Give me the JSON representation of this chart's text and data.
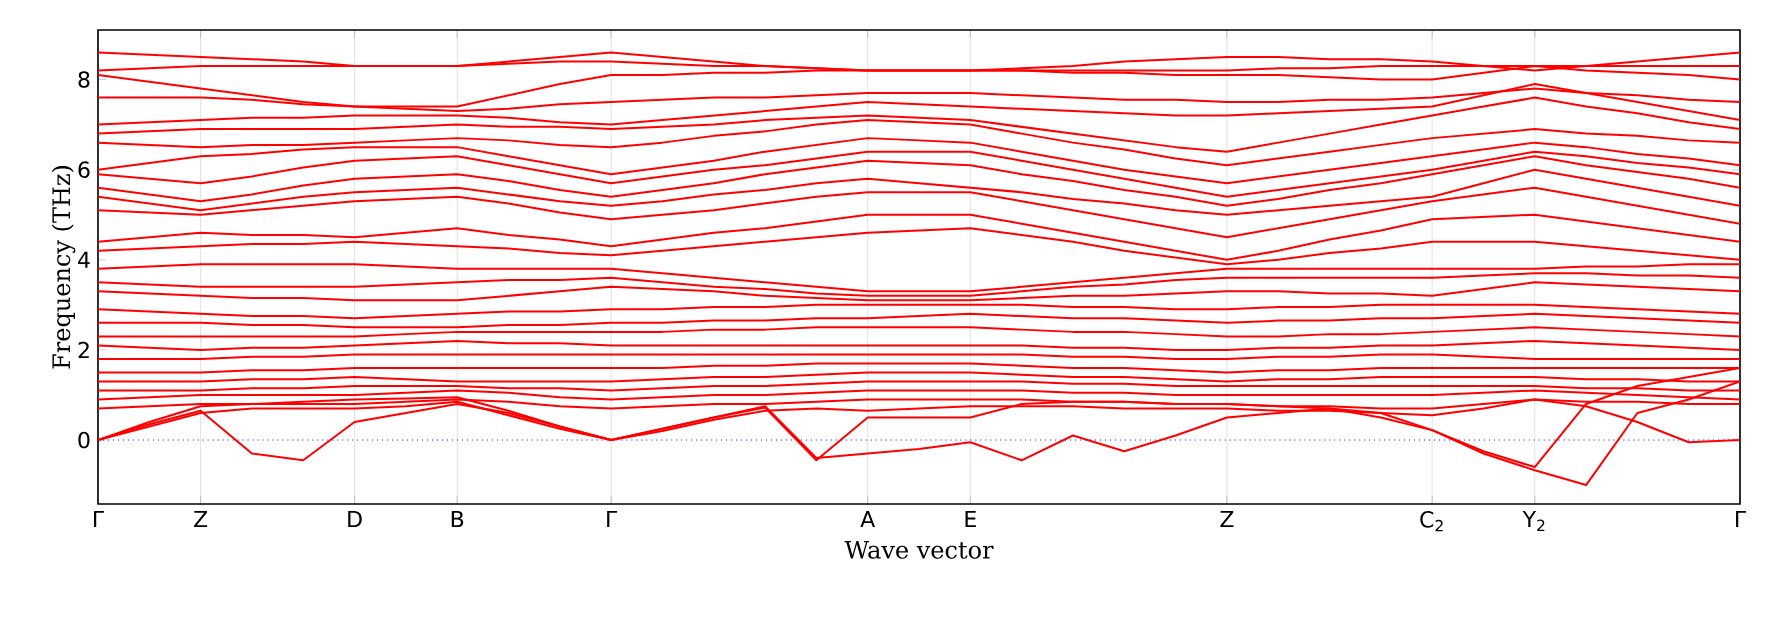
{
  "chart_data": {
    "type": "line",
    "xlabel": "Wave vector",
    "ylabel": "Frequency (THz)",
    "categories": [
      "Γ",
      null,
      "Z",
      null,
      null,
      "D",
      null,
      "B",
      null,
      null,
      "Γ",
      null,
      null,
      null,
      null,
      "A",
      null,
      "E",
      null,
      null,
      null,
      null,
      "Z",
      null,
      null,
      null,
      "C$_{2}$",
      null,
      "Y$_{2}$",
      null,
      null,
      null,
      "Γ"
    ],
    "ylim": [
      -1.42,
      9.1
    ],
    "yticks": [
      0,
      2,
      4,
      6,
      8
    ],
    "grid": "x",
    "ref_lines": [
      {
        "axis": "y",
        "value": 0,
        "color": "#0000ff",
        "line_style": "dotted"
      }
    ],
    "series": [
      {
        "color": "#ff0000",
        "values": [
          8.6,
          8.55,
          8.5,
          8.45,
          8.4,
          8.3,
          8.3,
          8.3,
          8.4,
          8.5,
          8.6,
          8.5,
          8.4,
          8.3,
          8.25,
          8.2,
          8.2,
          8.2,
          8.25,
          8.3,
          8.4,
          8.45,
          8.5,
          8.5,
          8.45,
          8.45,
          8.4,
          8.3,
          8.2,
          8.3,
          8.4,
          8.5,
          8.6
        ]
      },
      {
        "color": "#ff0000",
        "values": [
          8.2,
          8.25,
          8.3,
          8.3,
          8.3,
          8.3,
          8.3,
          8.3,
          8.35,
          8.4,
          8.4,
          8.35,
          8.3,
          8.3,
          8.25,
          8.2,
          8.2,
          8.2,
          8.2,
          8.2,
          8.2,
          8.2,
          8.2,
          8.25,
          8.25,
          8.3,
          8.3,
          8.3,
          8.3,
          8.3,
          8.3,
          8.3,
          8.3
        ]
      },
      {
        "color": "#ff0000",
        "values": [
          8.1,
          7.95,
          7.8,
          7.65,
          7.5,
          7.4,
          7.4,
          7.4,
          7.65,
          7.9,
          8.1,
          8.1,
          8.15,
          8.15,
          8.2,
          8.2,
          8.2,
          8.2,
          8.2,
          8.15,
          8.15,
          8.1,
          8.1,
          8.1,
          8.05,
          8.0,
          8.0,
          8.15,
          8.3,
          8.2,
          8.15,
          8.1,
          8.0
        ]
      },
      {
        "color": "#ff0000",
        "values": [
          7.6,
          7.6,
          7.6,
          7.55,
          7.45,
          7.4,
          7.35,
          7.3,
          7.35,
          7.45,
          7.5,
          7.55,
          7.6,
          7.6,
          7.65,
          7.7,
          7.7,
          7.7,
          7.65,
          7.6,
          7.55,
          7.55,
          7.5,
          7.5,
          7.55,
          7.55,
          7.6,
          7.7,
          7.8,
          7.7,
          7.65,
          7.55,
          7.5
        ]
      },
      {
        "color": "#ff0000",
        "values": [
          7.0,
          7.05,
          7.1,
          7.15,
          7.15,
          7.2,
          7.2,
          7.2,
          7.15,
          7.05,
          7.0,
          7.1,
          7.2,
          7.3,
          7.4,
          7.5,
          7.45,
          7.4,
          7.35,
          7.3,
          7.25,
          7.2,
          7.2,
          7.25,
          7.3,
          7.35,
          7.4,
          7.65,
          7.9,
          7.7,
          7.5,
          7.3,
          7.1
        ]
      },
      {
        "color": "#ff0000",
        "values": [
          6.8,
          6.85,
          6.9,
          6.9,
          6.9,
          6.9,
          6.95,
          7.0,
          6.95,
          6.95,
          6.9,
          6.95,
          7.0,
          7.1,
          7.15,
          7.2,
          7.15,
          7.1,
          6.95,
          6.8,
          6.65,
          6.5,
          6.4,
          6.6,
          6.8,
          7.0,
          7.2,
          7.4,
          7.6,
          7.4,
          7.25,
          7.05,
          6.9
        ]
      },
      {
        "color": "#ff0000",
        "values": [
          6.6,
          6.55,
          6.5,
          6.55,
          6.55,
          6.6,
          6.65,
          6.7,
          6.65,
          6.55,
          6.5,
          6.6,
          6.75,
          6.85,
          7.0,
          7.1,
          7.05,
          7.0,
          6.8,
          6.6,
          6.45,
          6.25,
          6.1,
          6.25,
          6.4,
          6.55,
          6.7,
          6.8,
          6.9,
          6.8,
          6.75,
          6.65,
          6.6
        ]
      },
      {
        "color": "#ff0000",
        "values": [
          6.0,
          6.15,
          6.3,
          6.35,
          6.45,
          6.5,
          6.5,
          6.5,
          6.3,
          6.1,
          5.9,
          6.05,
          6.2,
          6.4,
          6.55,
          6.7,
          6.65,
          6.6,
          6.4,
          6.2,
          6.0,
          5.85,
          5.7,
          5.85,
          6.0,
          6.15,
          6.3,
          6.45,
          6.6,
          6.5,
          6.35,
          6.25,
          6.1
        ]
      },
      {
        "color": "#ff0000",
        "values": [
          5.9,
          5.8,
          5.7,
          5.85,
          6.05,
          6.2,
          6.25,
          6.3,
          6.1,
          5.9,
          5.7,
          5.85,
          6.0,
          6.1,
          6.25,
          6.4,
          6.4,
          6.4,
          6.2,
          6.0,
          5.8,
          5.6,
          5.4,
          5.55,
          5.7,
          5.85,
          6.0,
          6.2,
          6.4,
          6.3,
          6.15,
          6.05,
          5.9
        ]
      },
      {
        "color": "#ff0000",
        "values": [
          5.6,
          5.45,
          5.3,
          5.45,
          5.65,
          5.8,
          5.85,
          5.9,
          5.75,
          5.55,
          5.4,
          5.55,
          5.7,
          5.9,
          6.05,
          6.2,
          6.15,
          6.1,
          5.9,
          5.75,
          5.55,
          5.4,
          5.2,
          5.35,
          5.55,
          5.7,
          5.9,
          6.1,
          6.3,
          6.1,
          5.95,
          5.8,
          5.6
        ]
      },
      {
        "color": "#ff0000",
        "values": [
          5.4,
          5.25,
          5.1,
          5.25,
          5.4,
          5.5,
          5.55,
          5.6,
          5.45,
          5.3,
          5.2,
          5.3,
          5.45,
          5.55,
          5.7,
          5.8,
          5.7,
          5.6,
          5.5,
          5.35,
          5.25,
          5.1,
          5.0,
          5.1,
          5.2,
          5.3,
          5.4,
          5.7,
          6.0,
          5.8,
          5.6,
          5.4,
          5.2
        ]
      },
      {
        "color": "#ff0000",
        "values": [
          5.1,
          5.05,
          5.0,
          5.1,
          5.2,
          5.3,
          5.35,
          5.4,
          5.25,
          5.05,
          4.9,
          5.0,
          5.1,
          5.25,
          5.4,
          5.5,
          5.5,
          5.5,
          5.3,
          5.1,
          4.9,
          4.7,
          4.5,
          4.7,
          4.9,
          5.1,
          5.3,
          5.45,
          5.6,
          5.4,
          5.2,
          5.0,
          4.8
        ]
      },
      {
        "color": "#ff0000",
        "values": [
          4.4,
          4.5,
          4.6,
          4.55,
          4.55,
          4.5,
          4.6,
          4.7,
          4.55,
          4.45,
          4.3,
          4.45,
          4.6,
          4.7,
          4.85,
          5.0,
          5.0,
          5.0,
          4.8,
          4.6,
          4.4,
          4.2,
          4.0,
          4.2,
          4.45,
          4.65,
          4.9,
          4.95,
          5.0,
          4.85,
          4.7,
          4.55,
          4.4
        ]
      },
      {
        "color": "#ff0000",
        "values": [
          4.2,
          4.25,
          4.3,
          4.35,
          4.35,
          4.4,
          4.35,
          4.3,
          4.25,
          4.15,
          4.1,
          4.2,
          4.3,
          4.4,
          4.5,
          4.6,
          4.65,
          4.7,
          4.55,
          4.4,
          4.2,
          4.05,
          3.9,
          4.0,
          4.15,
          4.25,
          4.4,
          4.4,
          4.4,
          4.3,
          4.2,
          4.1,
          4.0
        ]
      },
      {
        "color": "#ff0000",
        "values": [
          3.8,
          3.85,
          3.9,
          3.9,
          3.9,
          3.9,
          3.85,
          3.8,
          3.8,
          3.8,
          3.8,
          3.7,
          3.6,
          3.5,
          3.4,
          3.3,
          3.3,
          3.3,
          3.4,
          3.5,
          3.6,
          3.7,
          3.8,
          3.8,
          3.8,
          3.8,
          3.8,
          3.8,
          3.8,
          3.85,
          3.85,
          3.9,
          3.9
        ]
      },
      {
        "color": "#ff0000",
        "values": [
          3.5,
          3.45,
          3.4,
          3.4,
          3.4,
          3.4,
          3.45,
          3.5,
          3.55,
          3.55,
          3.6,
          3.5,
          3.4,
          3.35,
          3.25,
          3.2,
          3.2,
          3.2,
          3.3,
          3.4,
          3.45,
          3.55,
          3.6,
          3.6,
          3.6,
          3.6,
          3.6,
          3.65,
          3.7,
          3.7,
          3.65,
          3.65,
          3.6
        ]
      },
      {
        "color": "#ff0000",
        "values": [
          3.3,
          3.25,
          3.2,
          3.15,
          3.15,
          3.1,
          3.1,
          3.1,
          3.2,
          3.3,
          3.4,
          3.35,
          3.3,
          3.2,
          3.15,
          3.1,
          3.1,
          3.1,
          3.15,
          3.2,
          3.2,
          3.25,
          3.3,
          3.3,
          3.25,
          3.25,
          3.2,
          3.35,
          3.5,
          3.45,
          3.4,
          3.35,
          3.3
        ]
      },
      {
        "color": "#ff0000",
        "values": [
          2.9,
          2.85,
          2.8,
          2.75,
          2.75,
          2.7,
          2.75,
          2.8,
          2.85,
          2.85,
          2.9,
          2.9,
          2.95,
          2.95,
          3.0,
          3.0,
          3.0,
          3.0,
          3.0,
          2.95,
          2.95,
          2.9,
          2.9,
          2.95,
          2.95,
          3.0,
          3.0,
          3.0,
          3.0,
          2.95,
          2.9,
          2.85,
          2.8
        ]
      },
      {
        "color": "#ff0000",
        "values": [
          2.6,
          2.6,
          2.6,
          2.55,
          2.55,
          2.5,
          2.5,
          2.5,
          2.55,
          2.55,
          2.6,
          2.6,
          2.65,
          2.65,
          2.7,
          2.7,
          2.75,
          2.8,
          2.75,
          2.7,
          2.7,
          2.65,
          2.6,
          2.65,
          2.65,
          2.7,
          2.7,
          2.75,
          2.8,
          2.75,
          2.7,
          2.65,
          2.6
        ]
      },
      {
        "color": "#ff0000",
        "values": [
          2.3,
          2.3,
          2.3,
          2.3,
          2.3,
          2.3,
          2.35,
          2.4,
          2.4,
          2.4,
          2.4,
          2.4,
          2.45,
          2.45,
          2.5,
          2.5,
          2.5,
          2.5,
          2.45,
          2.4,
          2.4,
          2.35,
          2.3,
          2.3,
          2.35,
          2.35,
          2.4,
          2.45,
          2.5,
          2.45,
          2.4,
          2.35,
          2.3
        ]
      },
      {
        "color": "#ff0000",
        "values": [
          2.1,
          2.05,
          2.0,
          2.05,
          2.05,
          2.1,
          2.15,
          2.2,
          2.15,
          2.15,
          2.1,
          2.1,
          2.1,
          2.1,
          2.1,
          2.1,
          2.1,
          2.1,
          2.1,
          2.05,
          2.05,
          2.0,
          2.0,
          2.05,
          2.05,
          2.1,
          2.1,
          2.15,
          2.2,
          2.15,
          2.1,
          2.05,
          2.0
        ]
      },
      {
        "color": "#ff0000",
        "values": [
          1.8,
          1.8,
          1.8,
          1.85,
          1.85,
          1.9,
          1.9,
          1.9,
          1.9,
          1.9,
          1.9,
          1.9,
          1.9,
          1.9,
          1.9,
          1.9,
          1.9,
          1.9,
          1.9,
          1.85,
          1.85,
          1.8,
          1.8,
          1.85,
          1.85,
          1.9,
          1.9,
          1.85,
          1.8,
          1.8,
          1.8,
          1.8,
          1.8
        ]
      },
      {
        "color": "#ff0000",
        "values": [
          1.5,
          1.5,
          1.5,
          1.55,
          1.55,
          1.6,
          1.6,
          1.6,
          1.6,
          1.6,
          1.6,
          1.6,
          1.65,
          1.65,
          1.7,
          1.7,
          1.7,
          1.7,
          1.65,
          1.6,
          1.6,
          1.55,
          1.5,
          1.55,
          1.55,
          1.6,
          1.6,
          1.6,
          1.6,
          1.6,
          1.6,
          1.6,
          1.6
        ]
      },
      {
        "color": "#ff0000",
        "values": [
          1.3,
          1.3,
          1.3,
          1.35,
          1.35,
          1.4,
          1.35,
          1.3,
          1.3,
          1.3,
          1.3,
          1.35,
          1.4,
          1.4,
          1.45,
          1.5,
          1.5,
          1.5,
          1.45,
          1.4,
          1.4,
          1.35,
          1.3,
          1.35,
          1.35,
          1.4,
          1.4,
          1.4,
          1.4,
          1.35,
          1.35,
          1.3,
          1.3
        ]
      },
      {
        "color": "#ff0000",
        "values": [
          1.1,
          1.1,
          1.1,
          1.15,
          1.15,
          1.2,
          1.2,
          1.2,
          1.15,
          1.15,
          1.1,
          1.15,
          1.2,
          1.2,
          1.25,
          1.3,
          1.3,
          1.3,
          1.3,
          1.25,
          1.25,
          1.2,
          1.2,
          1.2,
          1.2,
          1.2,
          1.2,
          1.2,
          1.2,
          1.15,
          1.15,
          1.1,
          1.1
        ]
      },
      {
        "color": "#ff0000",
        "values": [
          0.9,
          0.95,
          1.0,
          1.0,
          1.0,
          1.0,
          1.05,
          1.1,
          1.05,
          0.95,
          0.9,
          0.95,
          1.0,
          1.0,
          1.05,
          1.1,
          1.1,
          1.1,
          1.1,
          1.05,
          1.05,
          1.0,
          1.0,
          1.0,
          1.0,
          1.0,
          1.0,
          1.05,
          1.1,
          1.05,
          1.0,
          0.95,
          0.9
        ]
      },
      {
        "color": "#ff0000",
        "values": [
          0.7,
          0.75,
          0.8,
          0.8,
          0.8,
          0.8,
          0.85,
          0.9,
          0.85,
          0.75,
          0.7,
          0.75,
          0.8,
          0.8,
          0.85,
          0.9,
          0.9,
          0.9,
          0.9,
          0.85,
          0.85,
          0.8,
          0.8,
          0.75,
          0.75,
          0.7,
          0.7,
          0.8,
          0.9,
          0.85,
          0.85,
          0.8,
          0.8
        ]
      },
      {
        "color": "#ff0000",
        "values": [
          0,
          0.35,
          0.65,
          -0.3,
          -0.45,
          0.4,
          0.6,
          0.8,
          0.6,
          0.3,
          0,
          0.25,
          0.5,
          0.75,
          -0.4,
          -0.3,
          -0.2,
          -0.05,
          -0.45,
          0.1,
          -0.25,
          0.1,
          0.5,
          0.6,
          0.7,
          0.5,
          0.22,
          -0.3,
          -0.67,
          -1.0,
          0.6,
          0.9,
          1.3
        ]
      },
      {
        "color": "#ff0000",
        "values": [
          0,
          0.4,
          0.75,
          0.8,
          0.85,
          0.9,
          0.92,
          0.95,
          0.65,
          0.3,
          0,
          0.25,
          0.5,
          0.72,
          -0.45,
          0.5,
          0.5,
          0.5,
          0.8,
          0.85,
          0.85,
          0.8,
          0.8,
          0.75,
          0.7,
          0.6,
          0.22,
          -0.25,
          -0.6,
          0.8,
          1.2,
          1.4,
          1.6
        ]
      },
      {
        "color": "#ff0000",
        "values": [
          0,
          0.3,
          0.6,
          0.7,
          0.7,
          0.7,
          0.75,
          0.85,
          0.55,
          0.25,
          0,
          0.2,
          0.45,
          0.65,
          0.7,
          0.65,
          0.7,
          0.75,
          0.75,
          0.75,
          0.7,
          0.7,
          0.7,
          0.65,
          0.65,
          0.6,
          0.55,
          0.7,
          0.9,
          0.75,
          0.4,
          -0.05,
          0
        ]
      }
    ]
  }
}
